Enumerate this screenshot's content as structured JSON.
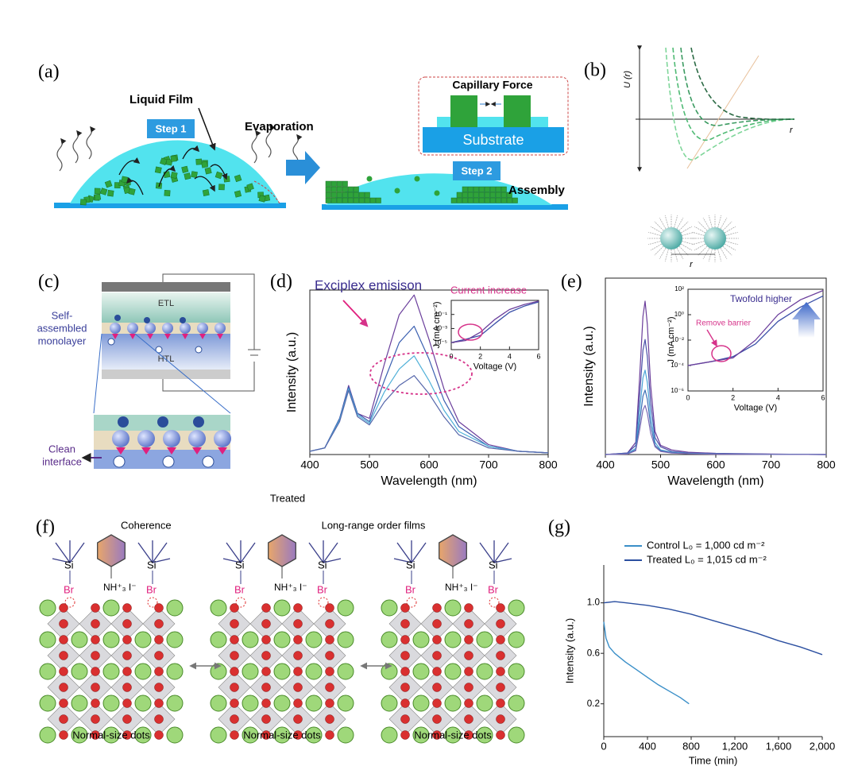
{
  "panel_labels": [
    "(a)",
    "(b)",
    "(c)",
    "(d)",
    "(e)",
    "(f)",
    "(g)"
  ],
  "panel_a": {
    "liquid_film": "Liquid Film",
    "step1": "Step 1",
    "evaporation": "Evaporation",
    "capillary_force": "Capillary Force",
    "substrate": "Substrate",
    "step2": "Step 2",
    "assembly": "Assembly"
  },
  "panel_b": {
    "y_label": "U (r)",
    "x_label": "r",
    "distance_label": "r"
  },
  "panel_c": {
    "etl": "ETL",
    "htl": "HTL",
    "sam_label": [
      "Self-",
      "assembled",
      "monolayer"
    ],
    "clean_interface": [
      "Clean",
      "interface"
    ]
  },
  "treated_label": "Treated",
  "panel_f": {
    "coherence": "Coherence",
    "title": "Long-range order films",
    "groups": [
      {
        "si_left": "Si",
        "si_right": "Si",
        "br_left": "Br",
        "br_right": "Br",
        "amine": "NH⁺₃ I⁻",
        "caption": "Normal-size dots"
      },
      {
        "si_left": "Si",
        "si_right": "Si",
        "br_left": "Br",
        "br_right": "Br",
        "amine": "NH⁺₃ I⁻",
        "caption": "Normal-size dots"
      },
      {
        "si_left": "Si",
        "si_right": "Si",
        "br_left": "Br",
        "br_right": "Br",
        "amine": "NH⁺₃ I⁻",
        "caption": "Normal-size dots"
      }
    ]
  },
  "chart_data": [
    {
      "type": "line",
      "title": "Exciplex emisison",
      "x_label": "Wavelength (nm)",
      "y_label": "Intensity (a.u.)",
      "xlim": [
        400,
        800
      ],
      "xticks": [
        400,
        500,
        600,
        700,
        800
      ],
      "ylim": [
        0,
        1
      ],
      "x": [
        400,
        425,
        450,
        465,
        480,
        500,
        525,
        550,
        575,
        600,
        625,
        650,
        700,
        750,
        800
      ],
      "series": [
        {
          "color": "#6b3f9c",
          "values": [
            0.02,
            0.04,
            0.22,
            0.42,
            0.25,
            0.22,
            0.55,
            0.85,
            0.97,
            0.7,
            0.4,
            0.2,
            0.06,
            0.02,
            0.01
          ]
        },
        {
          "color": "#3a5fb0",
          "values": [
            0.02,
            0.04,
            0.22,
            0.41,
            0.25,
            0.2,
            0.45,
            0.68,
            0.78,
            0.58,
            0.33,
            0.17,
            0.05,
            0.02,
            0.01
          ]
        },
        {
          "color": "#4fb0d8",
          "values": [
            0.02,
            0.04,
            0.21,
            0.4,
            0.24,
            0.19,
            0.38,
            0.52,
            0.6,
            0.45,
            0.27,
            0.14,
            0.05,
            0.02,
            0.01
          ]
        },
        {
          "color": "#5566aa",
          "values": [
            0.02,
            0.04,
            0.2,
            0.39,
            0.23,
            0.18,
            0.32,
            0.42,
            0.48,
            0.37,
            0.23,
            0.12,
            0.04,
            0.02,
            0.01
          ]
        }
      ]
    },
    {
      "type": "line",
      "annotation": "Current increase",
      "x_label": "Voltage (V)",
      "y_label": "J (mA cm⁻²)",
      "log_y": true,
      "xlim": [
        0,
        6
      ],
      "xticks": [
        0,
        2,
        4,
        6
      ],
      "ylim": [
        1e-06,
        10
      ],
      "yticks": [
        {
          "value": 0.1,
          "label": "10⁻¹"
        },
        {
          "value": 0.001,
          "label": "10⁻³"
        },
        {
          "value": 1e-05,
          "label": "10⁻⁵"
        }
      ],
      "x": [
        0,
        1,
        2,
        3,
        4,
        5,
        6
      ],
      "series": [
        {
          "color": "#3a4fa8",
          "values": [
            1e-05,
            3e-05,
            0.0001,
            0.005,
            0.2,
            1.5,
            6
          ]
        },
        {
          "color": "#6b3f9c",
          "values": [
            1e-05,
            2e-05,
            0.0003,
            0.02,
            0.5,
            2.5,
            8
          ]
        }
      ]
    },
    {
      "type": "line",
      "x_label": "Wavelength (nm)",
      "y_label": "Intensity (a.u.)",
      "xlim": [
        400,
        800
      ],
      "xticks": [
        400,
        500,
        600,
        700,
        800
      ],
      "ylim": [
        0,
        1.15
      ],
      "x": [
        400,
        440,
        455,
        462,
        468,
        472,
        476,
        482,
        490,
        500,
        520,
        550,
        600,
        700,
        800
      ],
      "series": [
        {
          "color": "#6a3d9a",
          "values": [
            0,
            0.01,
            0.08,
            0.5,
            0.9,
            1.0,
            0.85,
            0.45,
            0.15,
            0.06,
            0.03,
            0.015,
            0.008,
            0.003,
            0
          ]
        },
        {
          "color": "#4b4fa8",
          "values": [
            0,
            0.01,
            0.06,
            0.38,
            0.68,
            0.75,
            0.64,
            0.34,
            0.11,
            0.05,
            0.02,
            0.01,
            0.006,
            0.002,
            0
          ]
        },
        {
          "color": "#4aa3d6",
          "values": [
            0,
            0.005,
            0.04,
            0.28,
            0.5,
            0.55,
            0.47,
            0.25,
            0.08,
            0.03,
            0.015,
            0.008,
            0.004,
            0.002,
            0
          ]
        },
        {
          "color": "#3c6fb5",
          "values": [
            0,
            0.004,
            0.03,
            0.21,
            0.38,
            0.42,
            0.36,
            0.19,
            0.06,
            0.025,
            0.012,
            0.006,
            0.003,
            0.001,
            0
          ]
        },
        {
          "color": "#7d6bb5",
          "values": [
            0,
            0.003,
            0.025,
            0.16,
            0.29,
            0.32,
            0.27,
            0.14,
            0.05,
            0.02,
            0.01,
            0.005,
            0.002,
            0.001,
            0
          ]
        }
      ]
    },
    {
      "type": "line",
      "annotations": [
        "Twofold higher",
        "Remove barrier"
      ],
      "x_label": "Voltage (V)",
      "y_label": "J (mA cm⁻²)",
      "log_y": true,
      "xlim": [
        0,
        6
      ],
      "xticks": [
        0,
        2,
        4,
        6
      ],
      "ylim": [
        1e-06,
        100
      ],
      "yticks": [
        {
          "value": 100,
          "label": "10²"
        },
        {
          "value": 1,
          "label": "10⁰"
        },
        {
          "value": 0.01,
          "label": "10⁻²"
        },
        {
          "value": 0.0001,
          "label": "10⁻⁴"
        },
        {
          "value": 1e-06,
          "label": "10⁻⁶"
        }
      ],
      "x": [
        0,
        1,
        2,
        3,
        4,
        5,
        6
      ],
      "series": [
        {
          "color": "#3a4fa8",
          "values": [
            0.0001,
            0.0002,
            0.0005,
            0.005,
            0.3,
            4,
            30
          ]
        },
        {
          "color": "#6b3f9c",
          "values": [
            0.0001,
            0.0002,
            0.0004,
            0.01,
            1,
            15,
            80
          ]
        }
      ]
    },
    {
      "type": "line",
      "x_label": "Time (min)",
      "y_label": "Intensity (a.u.)",
      "xlim": [
        0,
        2000
      ],
      "xticks": [
        0,
        400,
        800,
        {
          "value": 1200,
          "label": "1,200"
        },
        {
          "value": 1600,
          "label": "1,600"
        },
        {
          "value": 2000,
          "label": "2,000"
        }
      ],
      "ylim": [
        -0.06,
        1.3
      ],
      "yticks": [
        0.2,
        0.6,
        {
          "value": 1,
          "label": "1.0"
        }
      ],
      "series": [
        {
          "name": "Control  L₀ = 1,000 cd m⁻²",
          "color": "#3a8fc8",
          "x": [
            0,
            20,
            50,
            100,
            200,
            300,
            400,
            500,
            600,
            700,
            780
          ],
          "values": [
            0.85,
            0.72,
            0.65,
            0.6,
            0.53,
            0.47,
            0.41,
            0.35,
            0.3,
            0.25,
            0.2
          ]
        },
        {
          "name": "Treated  L₀ = 1,015 cd m⁻²",
          "color": "#2b4fa0",
          "x": [
            0,
            100,
            200,
            400,
            600,
            800,
            1000,
            1200,
            1400,
            1600,
            1800,
            2000
          ],
          "values": [
            1.0,
            1.01,
            1.0,
            0.98,
            0.95,
            0.91,
            0.86,
            0.81,
            0.76,
            0.7,
            0.65,
            0.59
          ]
        }
      ]
    }
  ]
}
